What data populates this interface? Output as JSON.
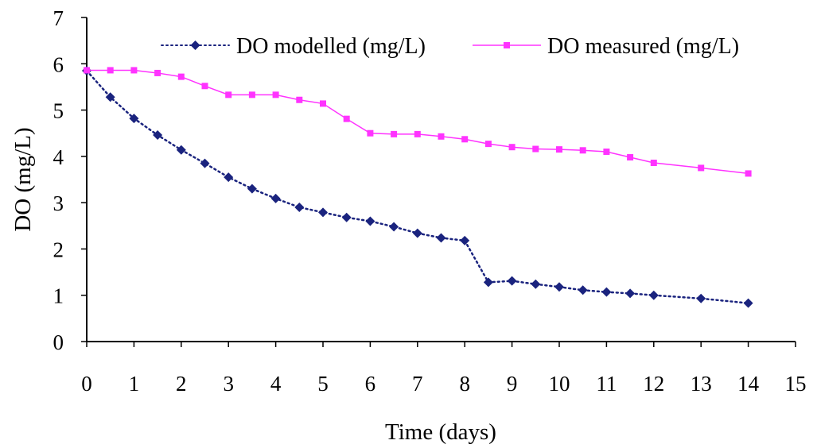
{
  "chart_data": {
    "type": "line",
    "xlabel": "Time (days)",
    "ylabel": "DO (mg/L)",
    "xlim": [
      0,
      15
    ],
    "ylim": [
      0,
      7
    ],
    "x_ticks": [
      "0",
      "1",
      "2",
      "3",
      "4",
      "5",
      "6",
      "7",
      "8",
      "9",
      "10",
      "11",
      "12",
      "13",
      "14",
      "15"
    ],
    "y_ticks": [
      "0",
      "1",
      "2",
      "3",
      "4",
      "5",
      "6",
      "7"
    ],
    "grid": false,
    "legend_position": "top",
    "series": [
      {
        "name": "DO modelled (mg/L)",
        "color": "#1a237e",
        "line_style": "dotted",
        "marker": "diamond",
        "x": [
          0,
          0.5,
          1,
          1.5,
          2,
          2.5,
          3,
          3.5,
          4,
          4.5,
          5,
          5.5,
          6,
          6.5,
          7,
          7.5,
          8,
          8.5,
          9,
          9.5,
          10,
          10.5,
          11,
          11.5,
          12,
          13,
          14
        ],
        "y": [
          5.85,
          5.28,
          4.82,
          4.46,
          4.14,
          3.85,
          3.55,
          3.3,
          3.09,
          2.9,
          2.79,
          2.68,
          2.6,
          2.48,
          2.34,
          2.24,
          2.18,
          1.28,
          1.31,
          1.24,
          1.18,
          1.11,
          1.07,
          1.04,
          1.0,
          0.93,
          0.83
        ]
      },
      {
        "name": "DO measured (mg/L)",
        "color": "#ff33ff",
        "line_style": "solid",
        "marker": "square",
        "x": [
          0,
          0.5,
          1,
          1.5,
          2,
          2.5,
          3,
          3.5,
          4,
          4.5,
          5,
          5.5,
          6,
          6.5,
          7,
          7.5,
          8,
          8.5,
          9,
          9.5,
          10,
          10.5,
          11,
          11.5,
          12,
          13,
          14
        ],
        "y": [
          5.86,
          5.86,
          5.86,
          5.8,
          5.72,
          5.52,
          5.33,
          5.33,
          5.33,
          5.22,
          5.14,
          4.81,
          4.5,
          4.48,
          4.48,
          4.43,
          4.37,
          4.27,
          4.2,
          4.16,
          4.15,
          4.13,
          4.1,
          3.98,
          3.86,
          3.75,
          3.63
        ]
      }
    ]
  }
}
